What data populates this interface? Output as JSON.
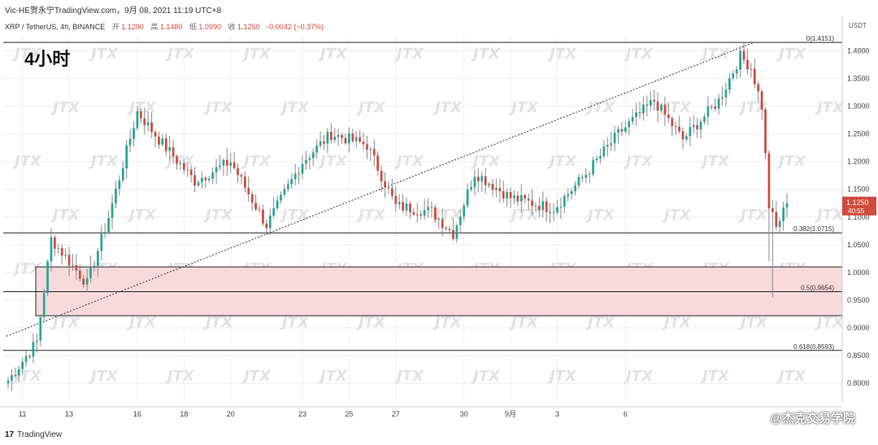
{
  "header": {
    "title_line": "Vic-HE贺永宁TradingView.com，9月 08, 2021 11:19 UTC+8",
    "symbol": "XRP / TetherUS, 4h, BINANCE",
    "ohlc": [
      {
        "label": "开",
        "value": "1.1290"
      },
      {
        "label": "高",
        "value": "1.1480"
      },
      {
        "label": "低",
        "value": "1.0990"
      },
      {
        "label": "收",
        "value": "1.1250"
      }
    ],
    "change": "−0.0042 (−0.37%)"
  },
  "timeframe_label": "4小时",
  "watermark_text": "JTX",
  "brand_watermark": "@杰克交易学院",
  "footer": {
    "logo_text": "TradingView"
  },
  "colors": {
    "up": "#26a69a",
    "down": "#d04b3d",
    "zone": "#f8d7d7",
    "grid": "#eeeeee"
  },
  "chart_data": {
    "type": "candlestick",
    "currency": "USDT",
    "y_ticks": [
      "1.4000",
      "1.3500",
      "1.3000",
      "1.2500",
      "1.2000",
      "1.1500",
      "1.1000",
      "1.0500",
      "1.0000",
      "0.9500",
      "0.9000",
      "0.8500",
      "0.8000"
    ],
    "ylim": [
      0.765,
      1.43
    ],
    "x_ticks": [
      "11",
      "13",
      "16",
      "18",
      "20",
      "23",
      "25",
      "27",
      "30",
      "9月",
      "3",
      "6"
    ],
    "last_price": {
      "value": "1.1250",
      "countdown": "40:55"
    },
    "fib_levels": [
      {
        "label": "0(1.4151)",
        "value": 1.4151
      },
      {
        "label": "0.382(1.0715)",
        "value": 1.0715
      },
      {
        "label": "0.5(0.9654)",
        "value": 0.9654
      },
      {
        "label": "0.618(0.8593)",
        "value": 0.8593
      }
    ],
    "support_zone": {
      "top": 1.01,
      "bottom": 0.922
    },
    "trendline": {
      "from": 0.885,
      "to": 1.415
    },
    "anchors": [
      {
        "i": 0,
        "c": 0.805
      },
      {
        "i": 8,
        "c": 0.875
      },
      {
        "i": 12,
        "c": 1.06
      },
      {
        "i": 22,
        "c": 0.98
      },
      {
        "i": 28,
        "c": 1.1
      },
      {
        "i": 36,
        "c": 1.29
      },
      {
        "i": 42,
        "c": 1.24
      },
      {
        "i": 52,
        "c": 1.165
      },
      {
        "i": 62,
        "c": 1.2
      },
      {
        "i": 72,
        "c": 1.085
      },
      {
        "i": 82,
        "c": 1.2
      },
      {
        "i": 90,
        "c": 1.25
      },
      {
        "i": 100,
        "c": 1.23
      },
      {
        "i": 108,
        "c": 1.12
      },
      {
        "i": 118,
        "c": 1.11
      },
      {
        "i": 124,
        "c": 1.07
      },
      {
        "i": 130,
        "c": 1.18
      },
      {
        "i": 140,
        "c": 1.135
      },
      {
        "i": 152,
        "c": 1.115
      },
      {
        "i": 160,
        "c": 1.17
      },
      {
        "i": 170,
        "c": 1.25
      },
      {
        "i": 180,
        "c": 1.31
      },
      {
        "i": 188,
        "c": 1.24
      },
      {
        "i": 198,
        "c": 1.31
      },
      {
        "i": 204,
        "c": 1.39
      },
      {
        "i": 207,
        "c": 1.37
      },
      {
        "i": 210,
        "c": 1.3
      },
      {
        "i": 212,
        "c": 1.12
      },
      {
        "i": 214,
        "c": 1.08
      },
      {
        "i": 217,
        "c": 1.125
      }
    ]
  }
}
